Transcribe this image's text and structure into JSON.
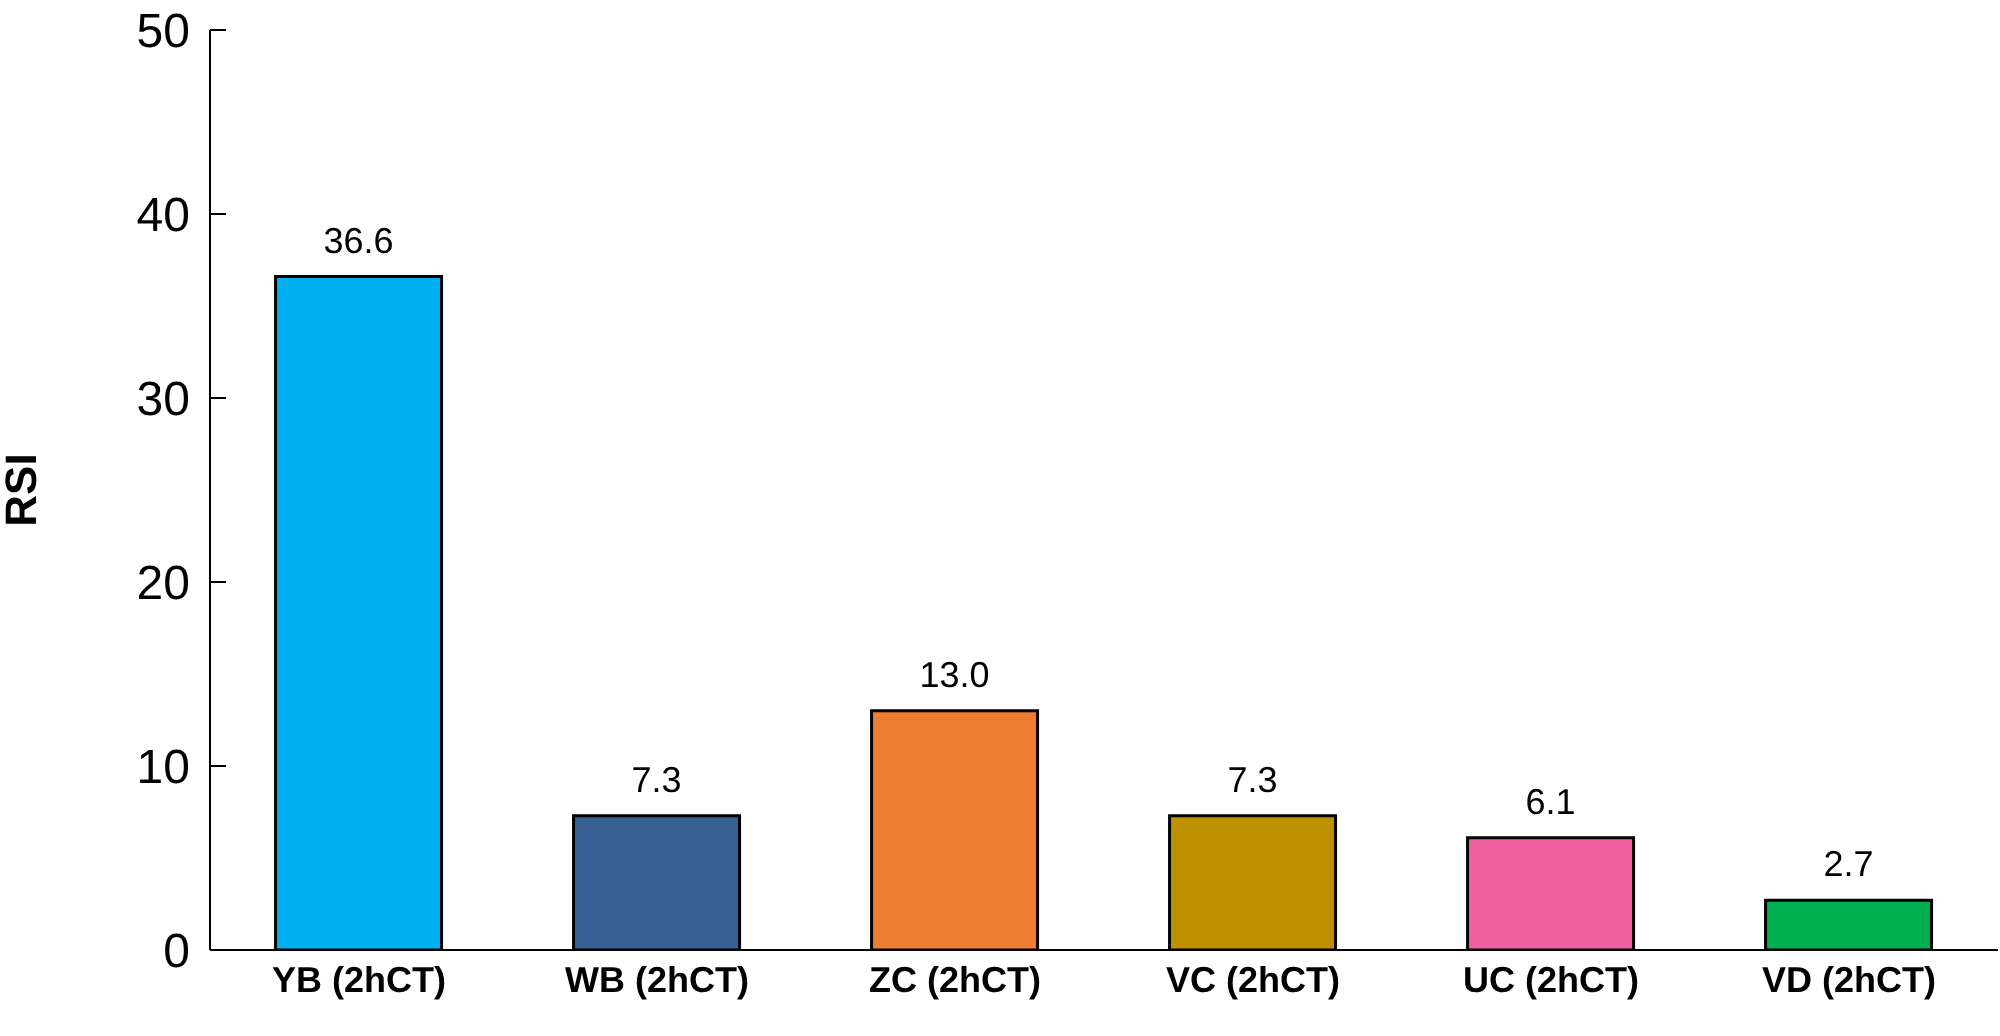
{
  "chart_data": {
    "type": "bar",
    "ylabel": "RSI",
    "categories": [
      "YB (2hCT)",
      "WB (2hCT)",
      "ZC (2hCT)",
      "VC (2hCT)",
      "UC (2hCT)",
      "VD (2hCT)"
    ],
    "values": [
      36.6,
      7.3,
      13.0,
      7.3,
      6.1,
      2.7
    ],
    "value_labels": [
      "36.6",
      "7.3",
      "13.0",
      "7.3",
      "6.1",
      "2.7"
    ],
    "colors": [
      "#00b0f0",
      "#376092",
      "#ed7d31",
      "#bf9000",
      "#f060a0",
      "#00b050"
    ],
    "ylim": [
      0,
      50
    ],
    "yticks": [
      0,
      10,
      20,
      30,
      40,
      50
    ],
    "grid": false,
    "legend": false
  }
}
